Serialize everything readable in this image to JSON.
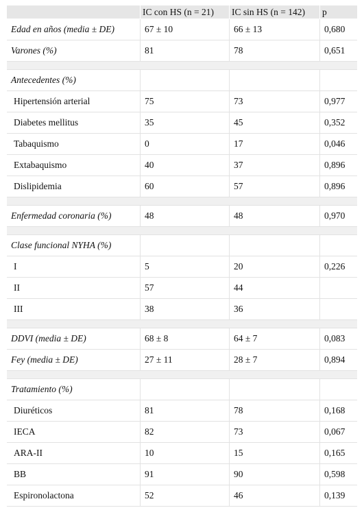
{
  "table": {
    "header": [
      "IC con HS (n = 21)",
      "IC sin HS (n = 142)",
      "p"
    ],
    "groups": [
      [
        {
          "label": "Edad en años (media ± DE)",
          "values": [
            "67 ± 10",
            "66 ± 13",
            "0,680"
          ]
        },
        {
          "label": "Varones (%)",
          "values": [
            "81",
            "78",
            "0,651"
          ]
        }
      ],
      [
        {
          "heading": "Antecedentes (%)",
          "items": [
            {
              "label": "Hipertensión arterial",
              "values": [
                "75",
                "73",
                "0,977"
              ]
            },
            {
              "label": "Diabetes mellitus",
              "values": [
                "35",
                "45",
                "0,352"
              ]
            },
            {
              "label": "Tabaquismo",
              "values": [
                "0",
                "17",
                "0,046"
              ]
            },
            {
              "label": "Extabaquismo",
              "values": [
                "40",
                "37",
                "0,896"
              ]
            },
            {
              "label": "Dislipidemia",
              "values": [
                "60",
                "57",
                "0,896"
              ]
            }
          ]
        }
      ],
      [
        {
          "label": "Enfermedad coronaria (%)",
          "values": [
            "48",
            "48",
            "0,970"
          ]
        }
      ],
      [
        {
          "heading": "Clase funcional NYHA (%)",
          "items": [
            {
              "label": "I",
              "values": [
                "5",
                "20",
                "0,226"
              ]
            },
            {
              "label": "II",
              "values": [
                "57",
                "44",
                null
              ]
            },
            {
              "label": "III",
              "values": [
                "38",
                "36",
                null
              ]
            }
          ]
        }
      ],
      [
        {
          "label": "DDVI (media ± DE)",
          "values": [
            "68 ± 8",
            "64 ± 7",
            "0,083"
          ]
        },
        {
          "label": "Fey (media ± DE)",
          "values": [
            "27 ± 11",
            "28 ± 7",
            "0,894"
          ]
        }
      ],
      [
        {
          "heading": "Tratamiento (%)",
          "items": [
            {
              "label": "Diuréticos",
              "values": [
                "81",
                "78",
                "0,168"
              ]
            },
            {
              "label": "IECA",
              "values": [
                "82",
                "73",
                "0,067"
              ]
            },
            {
              "label": "ARA-II",
              "values": [
                "10",
                "15",
                "0,165"
              ]
            },
            {
              "label": "BB",
              "values": [
                "91",
                "90",
                "0,598"
              ]
            },
            {
              "label": "Espironolactona",
              "values": [
                "52",
                "46",
                "0,139"
              ]
            }
          ]
        }
      ]
    ]
  }
}
